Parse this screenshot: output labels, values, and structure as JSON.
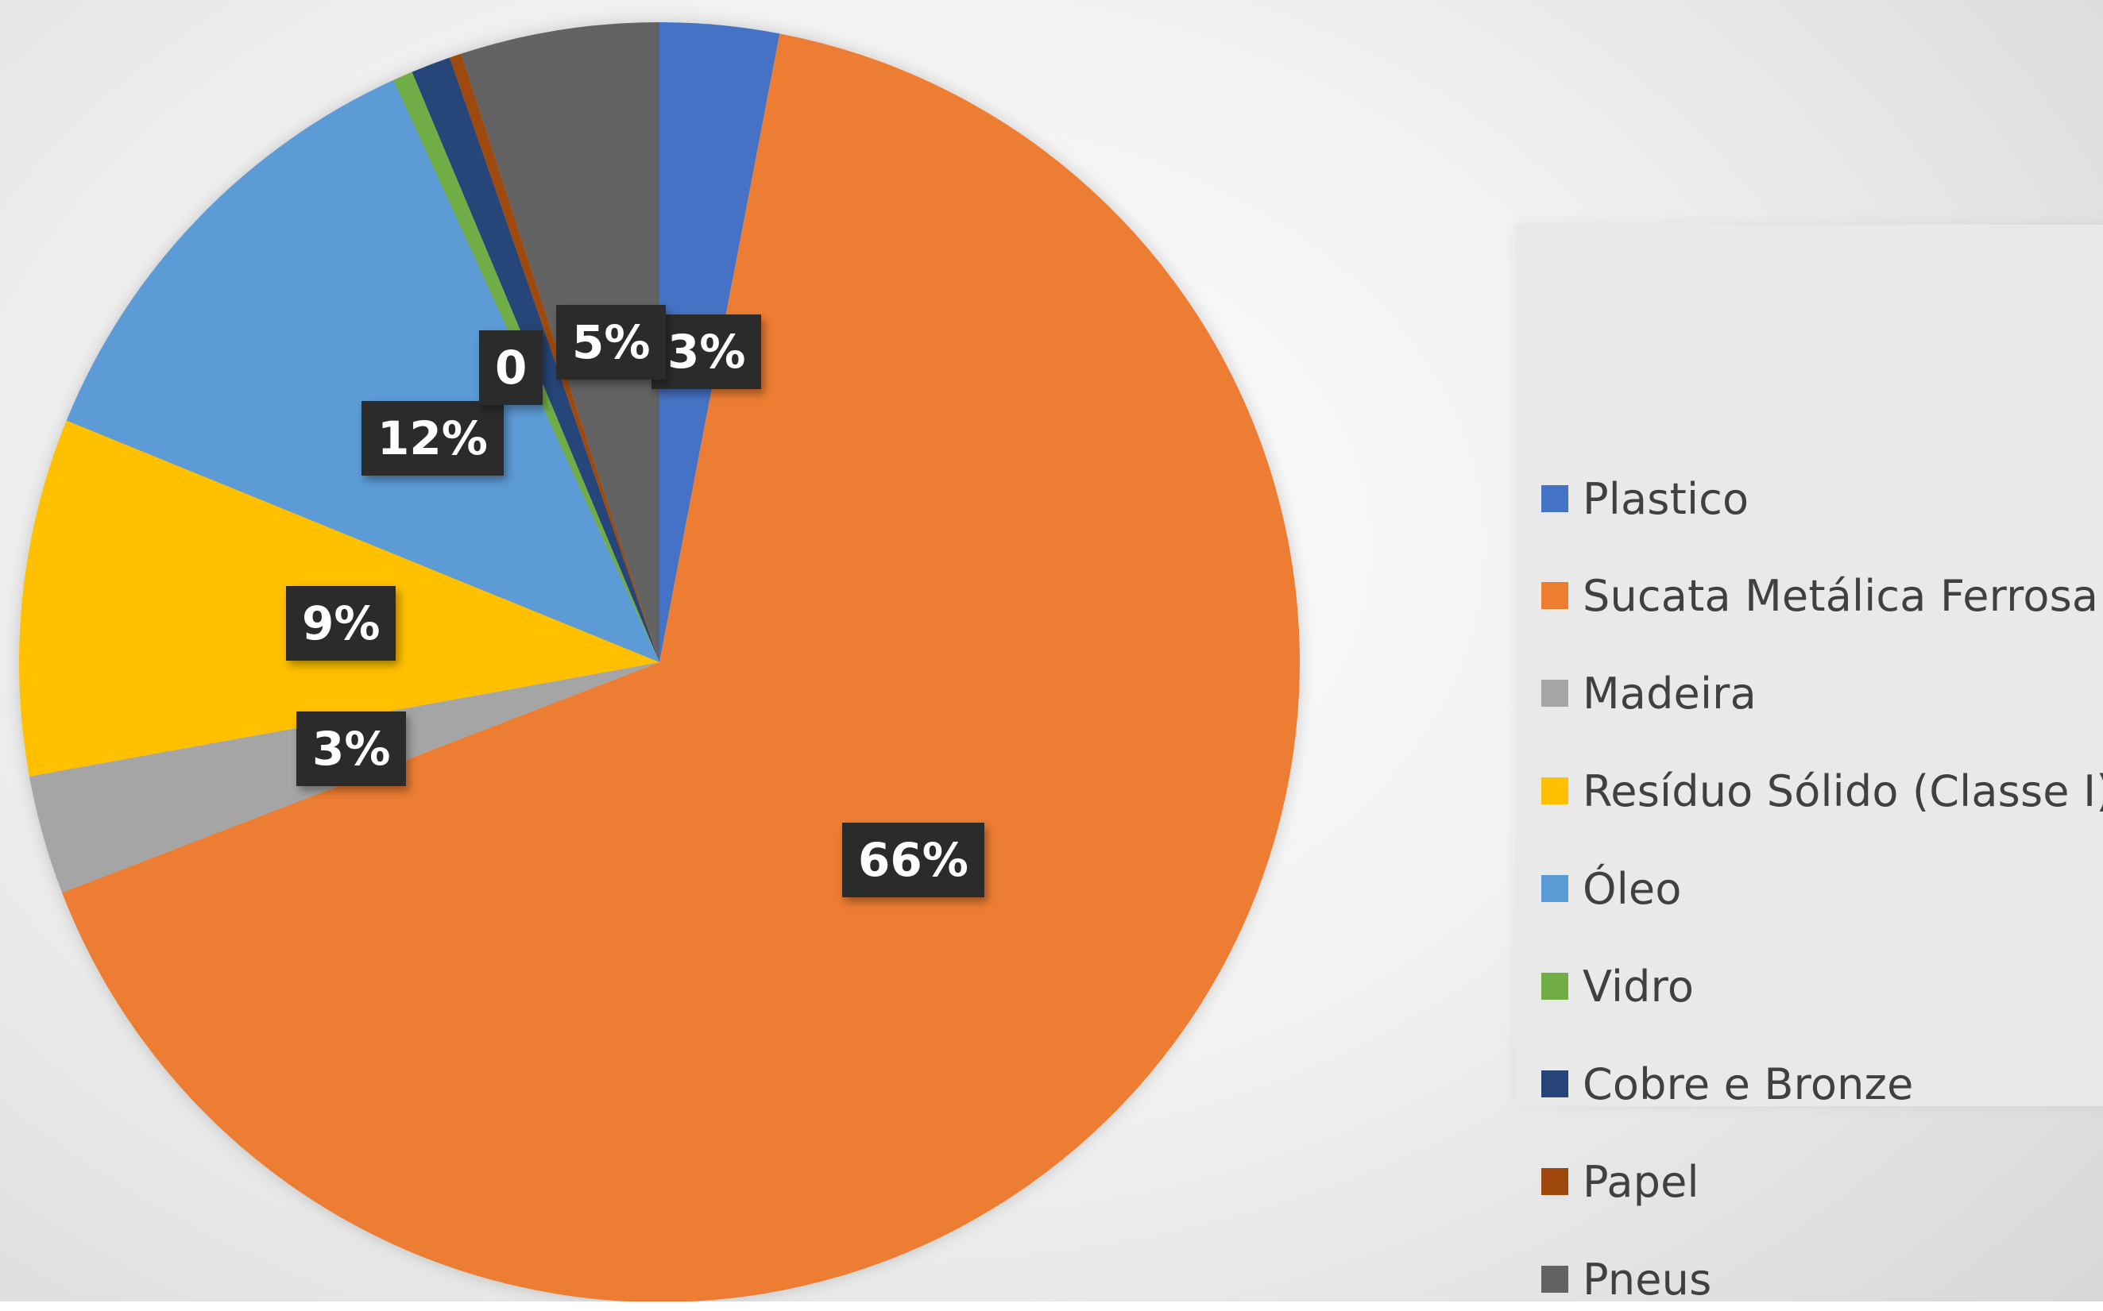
{
  "chart_data": {
    "type": "pie",
    "series": [
      {
        "name": "Plastico",
        "value": 3,
        "label": "3%",
        "color": "#4472c4"
      },
      {
        "name": "Sucata Metálica Ferrosa",
        "value": 66,
        "label": "66%",
        "color": "#ed7d31"
      },
      {
        "name": "Madeira",
        "value": 3,
        "label": "3%",
        "color": "#a5a5a5"
      },
      {
        "name": "Resíduo Sólido (Classe I)",
        "value": 9,
        "label": "9%",
        "color": "#ffc000"
      },
      {
        "name": "Óleo",
        "value": 12,
        "label": "12%",
        "color": "#5b9bd5"
      },
      {
        "name": "Vidro",
        "value": 0.5,
        "label": "0",
        "color": "#70ad47"
      },
      {
        "name": "Cobre e Bronze",
        "value": 1,
        "label": "",
        "color": "#264478"
      },
      {
        "name": "Papel",
        "value": 0.3,
        "label": "",
        "color": "#9e480e"
      },
      {
        "name": "Pneus",
        "value": 5,
        "label": "5%",
        "color": "#636363"
      }
    ],
    "legend_position": "right",
    "title": ""
  }
}
